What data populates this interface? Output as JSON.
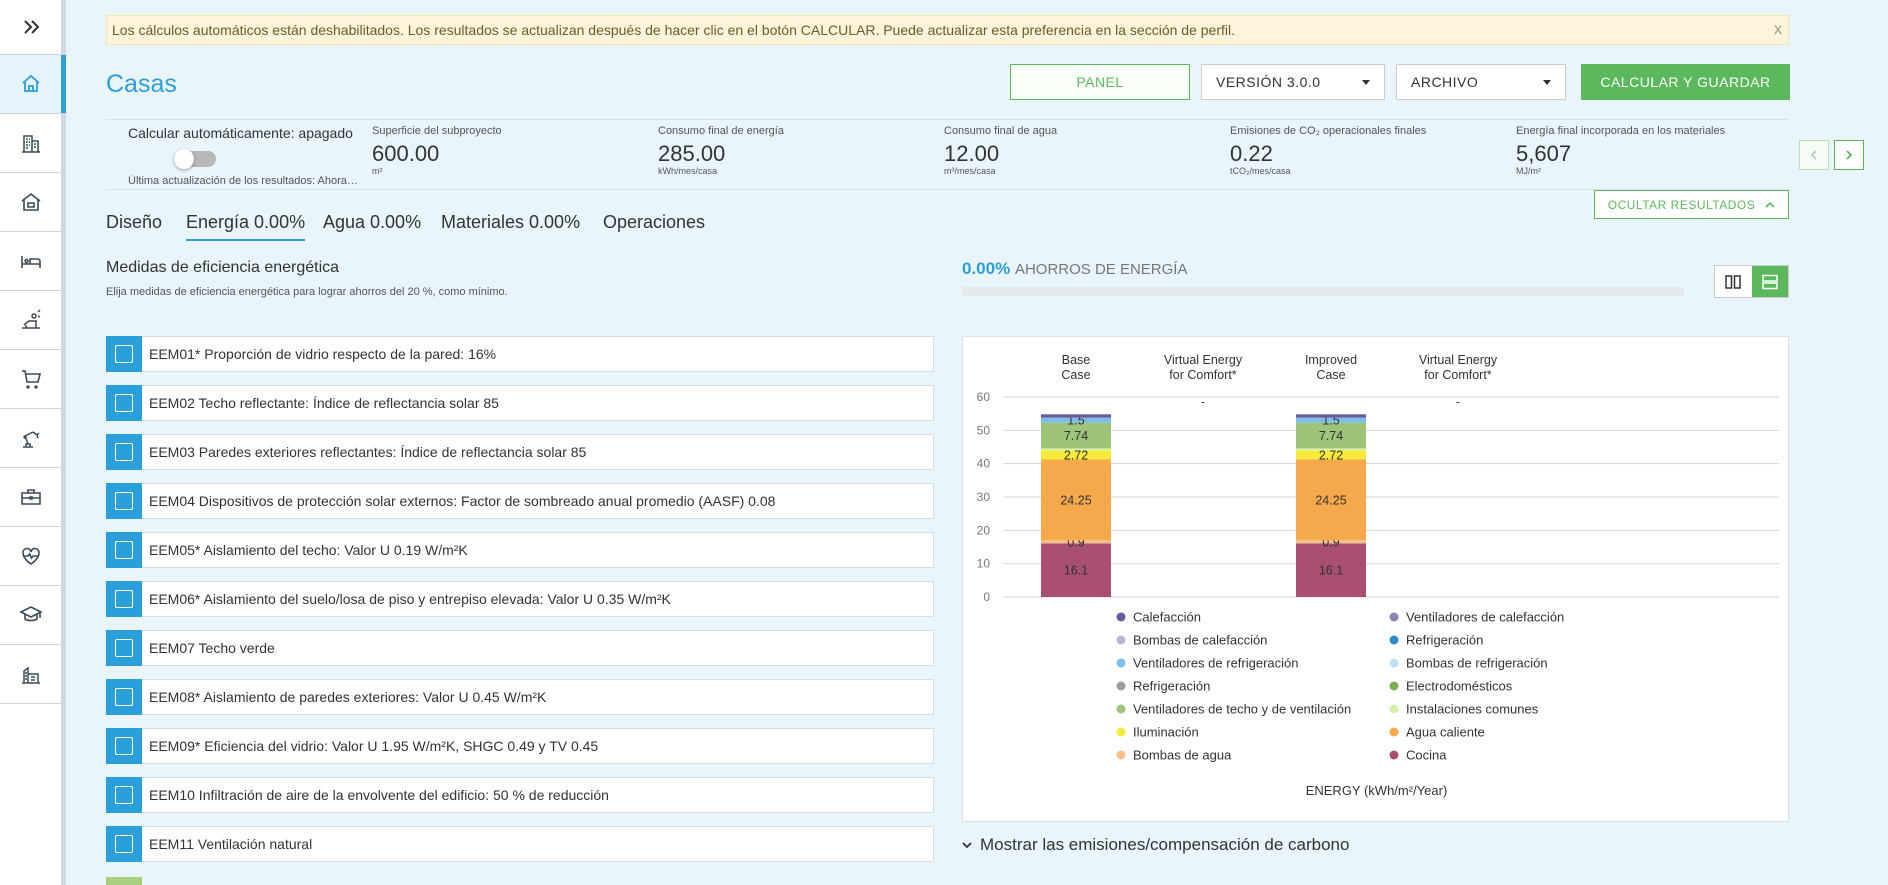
{
  "sidebar": {
    "expand_icon": "double-chevron-right-icon",
    "items": [
      {
        "name": "home",
        "icon": "home-icon",
        "active": true
      },
      {
        "name": "buildings",
        "icon": "buildings-icon"
      },
      {
        "name": "homes",
        "icon": "house-icon"
      },
      {
        "name": "hotel",
        "icon": "bed-icon"
      },
      {
        "name": "hospitality",
        "icon": "sunbed-icon"
      },
      {
        "name": "retail",
        "icon": "cart-icon"
      },
      {
        "name": "industry",
        "icon": "robot-arm-icon"
      },
      {
        "name": "offices",
        "icon": "briefcase-icon"
      },
      {
        "name": "health",
        "icon": "heart-monitor-icon"
      },
      {
        "name": "education",
        "icon": "graduation-cap-icon"
      },
      {
        "name": "warehouse",
        "icon": "warehouse-icon"
      }
    ]
  },
  "alert": {
    "text": "Los cálculos automáticos están deshabilitados. Los resultados se actualizan después de hacer clic en el botón CALCULAR. Puede actualizar esta preferencia en la sección de perfil.",
    "close": "x"
  },
  "page": {
    "title": "Casas"
  },
  "toolbar": {
    "panel_label": "PANEL",
    "version_label": "VERSIÓN 3.0.0",
    "archive_label": "ARCHIVO",
    "calc_label": "CALCULAR Y GUARDAR"
  },
  "results": {
    "auto_calc_label": "Calcular automáticamente: apagado",
    "auto_calc_on": false,
    "last_update": "Última actualización de los resultados: Ahora mismo",
    "metrics": [
      {
        "label": "Superficie del subproyecto",
        "value": "600.00",
        "unit": "m²"
      },
      {
        "label": "Consumo final de energía",
        "value": "285.00",
        "unit": "kWh/mes/casa"
      },
      {
        "label": "Consumo final de agua",
        "value": "12.00",
        "unit": "m³/mes/casa"
      },
      {
        "label": "Emisiones de CO₂ operacionales finales",
        "value": "0.22",
        "unit": "tCO₂/mes/casa"
      },
      {
        "label": "Energía final incorporada en los materiales",
        "value": "5,607",
        "unit": "MJ/m²"
      }
    ]
  },
  "tabs": [
    {
      "label": "Diseño"
    },
    {
      "label": "Energía 0.00%",
      "active": true
    },
    {
      "label": "Agua 0.00%"
    },
    {
      "label": "Materiales 0.00%"
    },
    {
      "label": "Operaciones"
    }
  ],
  "hide_results_label": "OCULTAR RESULTADOS",
  "measures": {
    "title": "Medidas de eficiencia energética",
    "subtitle": "Elija medidas de eficiencia energética para lograr ahorros del 20 %, como mínimo.",
    "items": [
      {
        "label": "EEM01*   Proporción de vidrio respecto de la pared: 16%"
      },
      {
        "label": "EEM02   Techo reflectante: Índice de reflectancia solar 85"
      },
      {
        "label": "EEM03   Paredes exteriores reflectantes: Índice de reflectancia solar 85"
      },
      {
        "label": "EEM04   Dispositivos de protección solar externos: Factor de sombreado anual promedio (AASF) 0.08"
      },
      {
        "label": "EEM05*   Aislamiento del techo: Valor U 0.19 W/m²K"
      },
      {
        "label": "EEM06*   Aislamiento del suelo/losa de piso y entrepiso elevada: Valor U 0.35 W/m²K"
      },
      {
        "label": "EEM07   Techo verde"
      },
      {
        "label": "EEM08*   Aislamiento de paredes exteriores: Valor U 0.45 W/m²K"
      },
      {
        "label": "EEM09*   Eficiencia del vidrio: Valor U 1.95 W/m²K, SHGC 0.49 y TV 0.45"
      },
      {
        "label": "EEM10   Infiltración de aire de la envolvente del edificio: 50 % de reducción"
      },
      {
        "label": "EEM11   Ventilación natural"
      }
    ]
  },
  "savings": {
    "percent": "0.00%",
    "label": "AHORROS DE ENERGÍA",
    "fraction": 0
  },
  "carbon_toggle_label": "Mostrar las emisiones/compensación de carbono",
  "chart_data": {
    "type": "bar",
    "stacked": true,
    "categories": [
      "Base Case",
      "Virtual Energy for Comfort*",
      "Improved Case",
      "Virtual Energy for Comfort*"
    ],
    "category_lines": [
      [
        "Base",
        "Case"
      ],
      [
        "Virtual Energy",
        "for Comfort*"
      ],
      [
        "Improved",
        "Case"
      ],
      [
        "Virtual Energy",
        "for Comfort*"
      ]
    ],
    "placeholder": "-",
    "xlabel": "ENERGY (kWh/m²/Year)",
    "ylim": [
      0,
      60
    ],
    "yticks": [
      0,
      10,
      20,
      30,
      40,
      50,
      60
    ],
    "grid": true,
    "legend_position": "bottom",
    "series": [
      {
        "name": "Cocina",
        "color": "#a94f72",
        "values": [
          16.1,
          null,
          16.1,
          null
        ]
      },
      {
        "name": "Bombas de agua",
        "color": "#f5c08e",
        "values": [
          0.9,
          null,
          0.9,
          null
        ]
      },
      {
        "name": "Agua caliente",
        "color": "#f6a94b",
        "values": [
          24.25,
          null,
          24.25,
          null
        ]
      },
      {
        "name": "Iluminación",
        "color": "#f7ea3a",
        "values": [
          2.72,
          null,
          2.72,
          null
        ]
      },
      {
        "name": "Instalaciones comunes",
        "color": "#d8f0a8",
        "values": [
          0.6,
          null,
          0.6,
          null
        ]
      },
      {
        "name": "Ventiladores de techo y de ventilación",
        "color": "#9ec47a",
        "values": [
          7.74,
          null,
          7.74,
          null
        ]
      },
      {
        "name": "Electrodomésticos",
        "color": "#7fae52",
        "values": [
          0,
          null,
          0,
          null
        ]
      },
      {
        "name": "Refrigeración",
        "color": "#9e9e9e",
        "values": [
          0,
          null,
          0,
          null
        ]
      },
      {
        "name": "Bombas de refrigeración",
        "color": "#bfe0f2",
        "values": [
          0,
          null,
          0,
          null
        ]
      },
      {
        "name": "Ventiladores de refrigeración",
        "color": "#7cc0ea",
        "values": [
          1.5,
          null,
          1.5,
          null
        ]
      },
      {
        "name": "Refrigeración",
        "color": "#2f8ac9",
        "values": [
          0,
          null,
          0,
          null
        ]
      },
      {
        "name": "Bombas de calefacción",
        "color": "#b9b9d6",
        "values": [
          0,
          null,
          0,
          null
        ]
      },
      {
        "name": "Ventiladores de calefacción",
        "color": "#8a84b5",
        "values": [
          0,
          null,
          0,
          null
        ]
      },
      {
        "name": "Calefacción",
        "color": "#6a5a9c",
        "values": [
          1.0,
          null,
          1.0,
          null
        ]
      }
    ],
    "data_labels": [
      {
        "series": "Cocina",
        "text": "16.1"
      },
      {
        "series": "Bombas de agua",
        "text": "0.9"
      },
      {
        "series": "Agua caliente",
        "text": "24.25"
      },
      {
        "series": "Iluminación",
        "text": "2.72"
      },
      {
        "series": "Ventiladores de techo y de ventilación",
        "text": "7.74"
      },
      {
        "series": "Ventiladores de refrigeración",
        "text": "1.5"
      }
    ],
    "legend": [
      {
        "name": "Calefacción",
        "color": "#6a5a9c"
      },
      {
        "name": "Ventiladores de calefacción",
        "color": "#8a84b5"
      },
      {
        "name": "Bombas de calefacción",
        "color": "#b9b9d6"
      },
      {
        "name": "Refrigeración",
        "color": "#2f8ac9"
      },
      {
        "name": "Ventiladores de refrigeración",
        "color": "#7cc0ea"
      },
      {
        "name": "Bombas de refrigeración",
        "color": "#bfe0f2"
      },
      {
        "name": "Refrigeración",
        "color": "#9e9e9e"
      },
      {
        "name": "Electrodomésticos",
        "color": "#7fae52"
      },
      {
        "name": "Ventiladores de techo y de ventilación",
        "color": "#9ec47a"
      },
      {
        "name": "Instalaciones comunes",
        "color": "#d8f0a8"
      },
      {
        "name": "Iluminación",
        "color": "#f7ea3a"
      },
      {
        "name": "Agua caliente",
        "color": "#f6a94b"
      },
      {
        "name": "Bombas de agua",
        "color": "#f5c08e"
      },
      {
        "name": "Cocina",
        "color": "#a94f72"
      }
    ]
  }
}
